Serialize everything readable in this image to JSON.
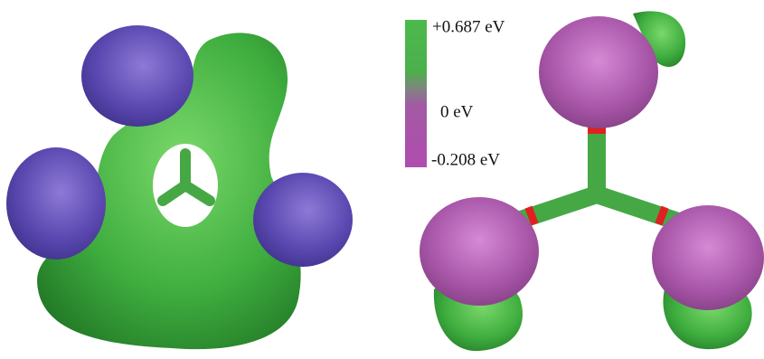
{
  "colorbar": {
    "labels": [
      "+0.687 eV",
      "0 eV",
      "-0.208 eV"
    ]
  }
}
